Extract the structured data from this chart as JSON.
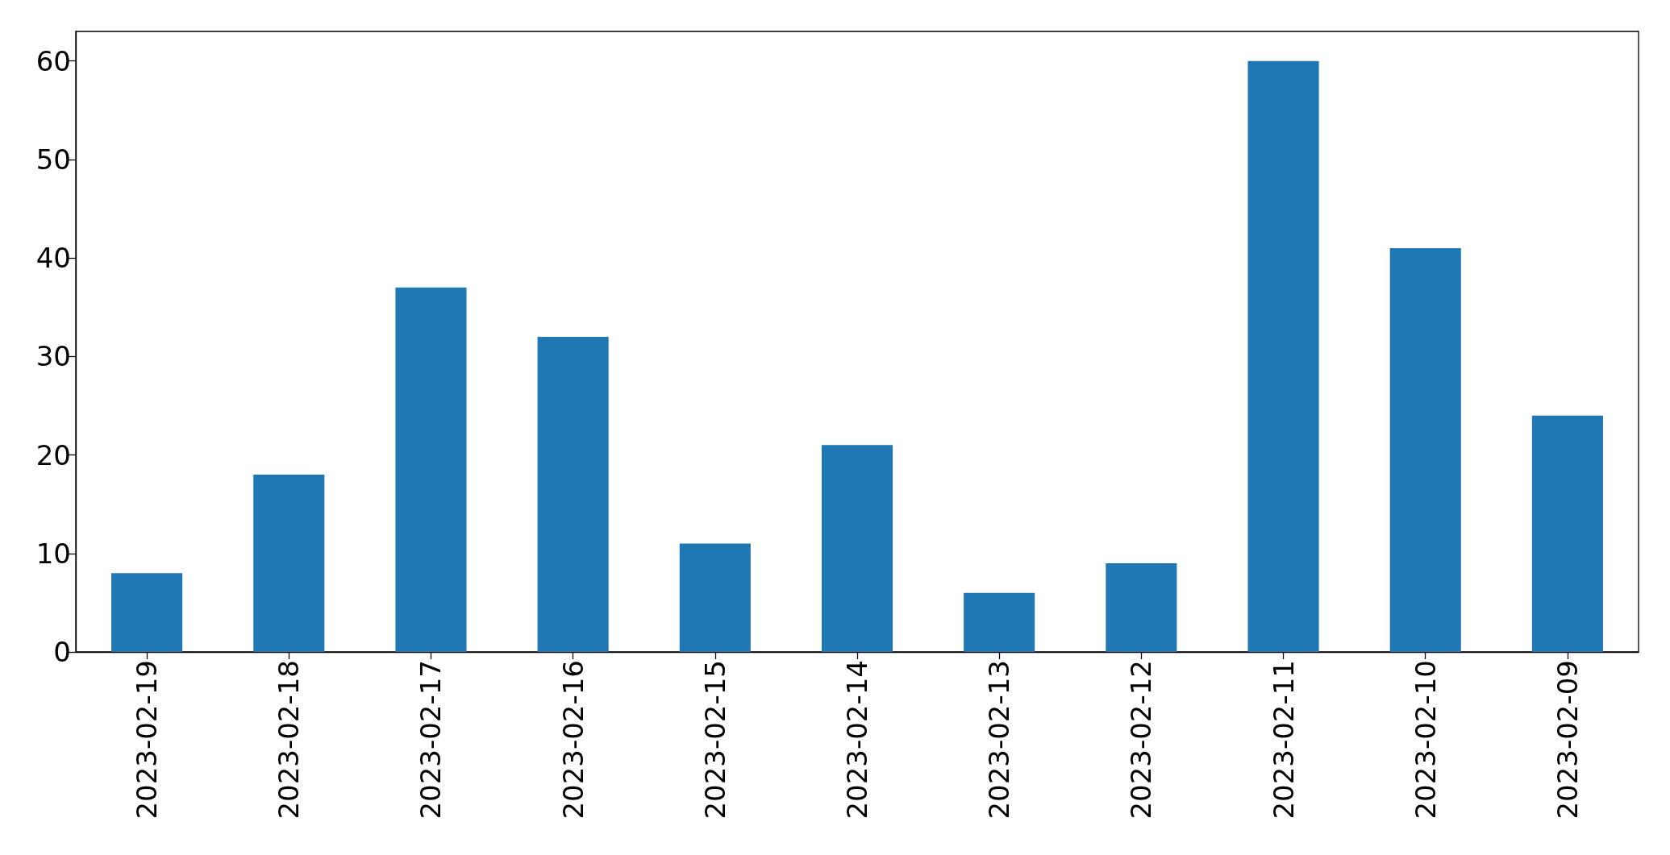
{
  "chart_data": {
    "type": "bar",
    "categories": [
      "2023-02-19",
      "2023-02-18",
      "2023-02-17",
      "2023-02-16",
      "2023-02-15",
      "2023-02-14",
      "2023-02-13",
      "2023-02-12",
      "2023-02-11",
      "2023-02-10",
      "2023-02-09"
    ],
    "values": [
      8,
      18,
      37,
      32,
      11,
      21,
      6,
      9,
      60,
      41,
      24
    ],
    "color": "#1f77b4",
    "ylim": [
      0,
      63
    ],
    "yticks": [
      0,
      10,
      20,
      30,
      40,
      50,
      60
    ]
  }
}
